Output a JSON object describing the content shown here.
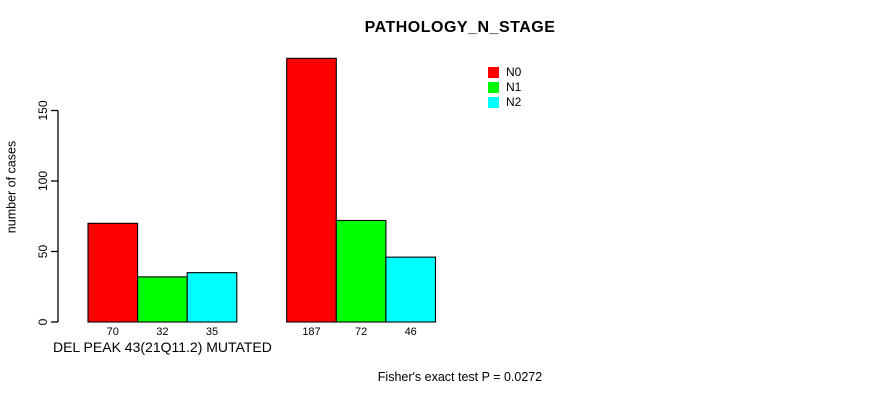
{
  "chart_data": {
    "type": "bar",
    "title": "PATHOLOGY_N_STAGE",
    "categories": [
      "DEL PEAK 43(21Q11.2) MUTATED",
      ""
    ],
    "series": [
      {
        "name": "N0",
        "color": "#FF0000",
        "values": [
          70,
          187
        ]
      },
      {
        "name": "N1",
        "color": "#00FF00",
        "values": [
          32,
          72
        ]
      },
      {
        "name": "N2",
        "color": "#00FFFF",
        "values": [
          35,
          46
        ]
      }
    ],
    "ylabel": "number of cases",
    "xlabel": "",
    "yticks": [
      0,
      50,
      100,
      150
    ],
    "ylim": [
      0,
      190
    ],
    "show_bar_values": true,
    "grid": false,
    "legend_position": "top-right",
    "axis_color": "#000000",
    "annotation": "Fisher's exact test P = 0.0272"
  }
}
